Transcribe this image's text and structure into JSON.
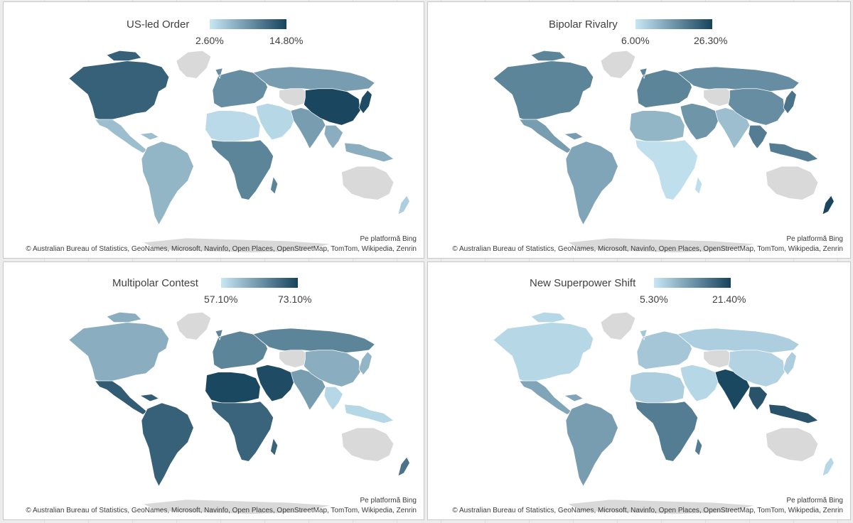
{
  "attribution": {
    "platform": "Pe platformă Bing",
    "copyright": "© Australian Bureau of Statistics, GeoNames, Microsoft, Navinfo, Open Places, OpenStreetMap, TomTom, Wikipedia, Zenrin"
  },
  "colors": {
    "scale_low": "#c8e7f5",
    "scale_high": "#16435c",
    "no_data": "#d9d9d9"
  },
  "maps": [
    {
      "title": "US-led Order",
      "legend_min": "2.60%",
      "legend_max": "14.80%",
      "shading": {
        "north_america": 0.82,
        "greenland": null,
        "mexico_central_america": 0.25,
        "south_america": 0.3,
        "europe": 0.55,
        "russia": 0.45,
        "central_asia": null,
        "middle_east": 0.1,
        "north_africa": 0.08,
        "sub_saharan_africa": 0.6,
        "south_asia": 0.45,
        "china": 0.98,
        "southeast_asia": 0.35,
        "japan": 0.95,
        "australia": null,
        "new_zealand": 0.15
      }
    },
    {
      "title": "Bipolar Rivalry",
      "legend_min": "6.00%",
      "legend_max": "26.30%",
      "shading": {
        "north_america": 0.6,
        "greenland": null,
        "mexico_central_america": 0.45,
        "south_america": 0.4,
        "europe": 0.6,
        "russia": 0.55,
        "central_asia": null,
        "middle_east": 0.5,
        "north_africa": 0.3,
        "sub_saharan_africa": 0.05,
        "south_asia": 0.25,
        "china": 0.55,
        "southeast_asia": 0.65,
        "japan": 0.7,
        "australia": null,
        "new_zealand": 0.98
      }
    },
    {
      "title": "Multipolar Contest",
      "legend_min": "57.10%",
      "legend_max": "73.10%",
      "shading": {
        "north_america": 0.35,
        "greenland": null,
        "mexico_central_america": 0.85,
        "south_america": 0.82,
        "europe": 0.6,
        "russia": 0.6,
        "central_asia": null,
        "middle_east": 0.95,
        "north_africa": 0.97,
        "sub_saharan_africa": 0.8,
        "south_asia": 0.45,
        "china": 0.35,
        "southeast_asia": 0.1,
        "japan": 0.3,
        "australia": null,
        "new_zealand": 0.7
      }
    },
    {
      "title": "New Superpower Shift",
      "legend_min": "5.30%",
      "legend_max": "21.40%",
      "shading": {
        "north_america": 0.1,
        "greenland": null,
        "mexico_central_america": 0.4,
        "south_america": 0.45,
        "europe": 0.2,
        "russia": 0.15,
        "central_asia": null,
        "middle_east": 0.1,
        "north_africa": 0.15,
        "sub_saharan_africa": 0.65,
        "south_asia": 0.97,
        "china": 0.12,
        "southeast_asia": 0.9,
        "japan": 0.15,
        "australia": null,
        "new_zealand": 0.1
      }
    }
  ]
}
